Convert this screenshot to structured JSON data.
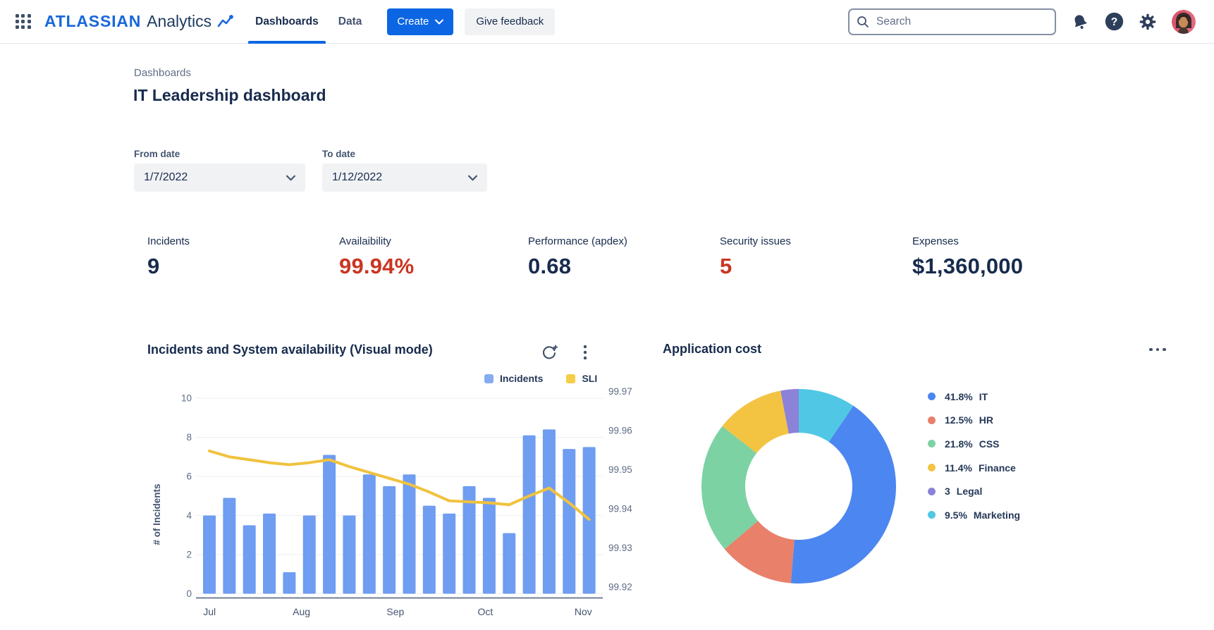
{
  "header": {
    "logo_primary": "ATLASSIAN",
    "logo_secondary": "Analytics",
    "nav": [
      {
        "label": "Dashboards",
        "active": true
      },
      {
        "label": "Data",
        "active": false
      }
    ],
    "create_label": "Create",
    "feedback_label": "Give feedback",
    "search_placeholder": "Search",
    "help_glyph": "?"
  },
  "page": {
    "breadcrumb": "Dashboards",
    "title": "IT Leadership dashboard"
  },
  "filters": {
    "from": {
      "label": "From date",
      "value": "1/7/2022"
    },
    "to": {
      "label": "To date",
      "value": "1/12/2022"
    }
  },
  "kpis": [
    {
      "label": "Incidents",
      "value": "9",
      "color": "#172B4D"
    },
    {
      "label": "Availaibility",
      "value": "99.94%",
      "color": "#CA3521"
    },
    {
      "label": "Performance (apdex)",
      "value": "0.68",
      "color": "#172B4D"
    },
    {
      "label": "Security issues",
      "value": "5",
      "color": "#CA3521"
    },
    {
      "label": "Expenses",
      "value": "$1,360,000",
      "color": "#172B4D"
    }
  ],
  "chart_data": [
    {
      "type": "bar+line",
      "title": "Incidents and System availability (Visual mode)",
      "ylabel": "# of Incidents",
      "y_left": {
        "ticks": [
          10,
          8,
          6,
          4,
          2,
          0
        ],
        "range": [
          0,
          10
        ]
      },
      "y_right": {
        "ticks": [
          "99.97",
          "99.96",
          "99.95",
          "99.94",
          "99.93",
          "99.92"
        ],
        "range": [
          99.92,
          99.97
        ]
      },
      "x_ticks": [
        {
          "label": "Jul",
          "bar_index": 0
        },
        {
          "label": "Aug",
          "bar_index": 4.6
        },
        {
          "label": "Sep",
          "bar_index": 9.3
        },
        {
          "label": "Oct",
          "bar_index": 13.8
        },
        {
          "label": "Nov",
          "bar_index": 18.7
        }
      ],
      "series": [
        {
          "name": "Incidents",
          "type": "bar",
          "axis": "left",
          "color": "#6E9DF1",
          "legend_color": "#85ACF0",
          "values": [
            4,
            4.9,
            3.5,
            4.1,
            1.1,
            4,
            7.1,
            4,
            6.1,
            5.5,
            6.1,
            4.5,
            4.1,
            5.5,
            4.9,
            3.1,
            8.1,
            8.4,
            7.4,
            7.5
          ]
        },
        {
          "name": "SLI",
          "type": "line",
          "axis": "right",
          "color": "#F0C23E",
          "legend_color": "#F5CD47",
          "values": [
            99.957,
            99.955,
            99.954,
            99.954,
            99.953,
            99.954,
            99.954,
            99.953,
            99.951,
            99.95,
            99.948,
            99.946,
            99.944,
            99.944,
            99.943,
            99.943,
            99.945,
            99.947,
            99.943,
            99.939
          ],
          "values_left_scale": [
            7.3,
            7.0,
            6.85,
            6.7,
            6.6,
            6.7,
            6.85,
            6.5,
            6.2,
            5.9,
            5.6,
            5.2,
            4.75,
            4.7,
            4.65,
            4.55,
            5.0,
            5.4,
            4.65,
            3.8
          ]
        }
      ],
      "grid": true,
      "legend_position": "top-right"
    },
    {
      "type": "pie",
      "subtype": "donut",
      "title": "Application cost",
      "segments": [
        {
          "name": "IT",
          "pct_label": "41.8%",
          "value": 41.8,
          "color": "#4C86F0"
        },
        {
          "name": "HR",
          "pct_label": "12.5%",
          "value": 12.5,
          "color": "#E8806A"
        },
        {
          "name": "CSS",
          "pct_label": "21.8%",
          "value": 21.8,
          "color": "#7CD2A3"
        },
        {
          "name": "Finance",
          "pct_label": "11.4%",
          "value": 11.4,
          "color": "#F3C442"
        },
        {
          "name": "Legal",
          "pct_label": "3",
          "value": 3,
          "color": "#8C82D8"
        },
        {
          "name": "Marketing",
          "pct_label": "9.5%",
          "value": 9.5,
          "color": "#50C7E4"
        }
      ],
      "start_segment": "Marketing",
      "clockwise_from_top": true,
      "legend_position": "right"
    }
  ]
}
